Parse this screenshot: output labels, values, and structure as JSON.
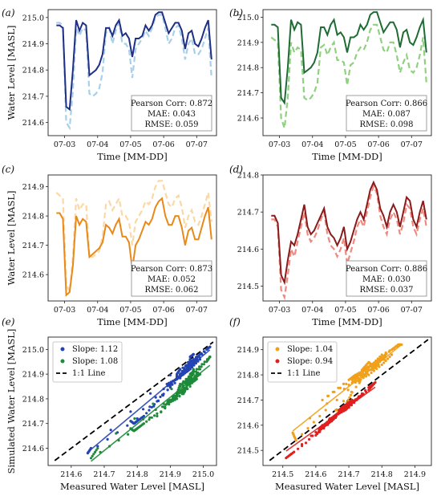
{
  "chart_data": [
    {
      "id": "a",
      "type": "line",
      "panel_label": "(a)",
      "xlabel": "Time [MM-DD]",
      "ylabel": "Water Level [MASL]",
      "x_ticks": [
        "07-03",
        "07-04",
        "07-05",
        "07-06",
        "07-07"
      ],
      "y_ticks": [
        214.6,
        214.7,
        214.8,
        214.9,
        215.0
      ],
      "ylim": [
        214.55,
        215.03
      ],
      "colors": {
        "measured": "#1f2f86",
        "simulated": "#a8d0e8"
      },
      "x_days": [
        2.75,
        2.85,
        2.95,
        3.05,
        3.15,
        3.25,
        3.35,
        3.45,
        3.55,
        3.65,
        3.75,
        3.85,
        3.95,
        4.05,
        4.15,
        4.25,
        4.35,
        4.45,
        4.55,
        4.65,
        4.75,
        4.85,
        4.95,
        5.05,
        5.15,
        5.25,
        5.35,
        5.45,
        5.55,
        5.65,
        5.75,
        5.85,
        5.95,
        6.05,
        6.15,
        6.25,
        6.35,
        6.45,
        6.55,
        6.65,
        6.75,
        6.85,
        6.95,
        7.05,
        7.15,
        7.25,
        7.35,
        7.45
      ],
      "measured": [
        214.97,
        214.97,
        214.96,
        214.66,
        214.65,
        214.8,
        214.99,
        214.95,
        214.98,
        214.97,
        214.78,
        214.79,
        214.8,
        214.82,
        214.86,
        214.96,
        214.96,
        214.93,
        214.97,
        214.99,
        214.93,
        214.94,
        214.92,
        214.85,
        214.92,
        214.92,
        214.93,
        214.97,
        214.95,
        214.97,
        215.01,
        215.02,
        215.02,
        214.98,
        214.94,
        214.96,
        214.98,
        214.98,
        214.95,
        214.88,
        214.94,
        214.95,
        214.9,
        214.89,
        214.92,
        214.96,
        214.99,
        214.84
      ],
      "simulated": [
        214.98,
        214.98,
        214.97,
        214.6,
        214.58,
        214.72,
        214.96,
        214.93,
        214.96,
        214.95,
        214.71,
        214.7,
        214.71,
        214.73,
        214.79,
        214.94,
        214.96,
        214.9,
        214.95,
        214.98,
        214.9,
        214.9,
        214.88,
        214.77,
        214.88,
        214.9,
        214.92,
        214.95,
        214.93,
        214.96,
        215.0,
        215.01,
        215.01,
        214.96,
        214.9,
        214.92,
        214.96,
        214.97,
        214.92,
        214.84,
        214.9,
        214.92,
        214.86,
        214.86,
        214.88,
        214.92,
        214.96,
        214.77
      ],
      "stats": [
        "Pearson Corr: 0.872",
        "MAE: 0.043",
        "RMSE: 0.059"
      ]
    },
    {
      "id": "b",
      "type": "line",
      "panel_label": "(b)",
      "xlabel": "Time [MM-DD]",
      "ylabel": "",
      "x_ticks": [
        "07-03",
        "07-04",
        "07-05",
        "07-06",
        "07-07"
      ],
      "y_ticks": [
        214.6,
        214.7,
        214.8,
        214.9,
        215.0
      ],
      "ylim": [
        214.53,
        215.03
      ],
      "colors": {
        "measured": "#1e6b34",
        "simulated": "#8fd17f"
      },
      "x_days": [
        2.75,
        2.85,
        2.95,
        3.05,
        3.15,
        3.25,
        3.35,
        3.45,
        3.55,
        3.65,
        3.75,
        3.85,
        3.95,
        4.05,
        4.15,
        4.25,
        4.35,
        4.45,
        4.55,
        4.65,
        4.75,
        4.85,
        4.95,
        5.05,
        5.15,
        5.25,
        5.35,
        5.45,
        5.55,
        5.65,
        5.75,
        5.85,
        5.95,
        6.05,
        6.15,
        6.25,
        6.35,
        6.45,
        6.55,
        6.65,
        6.75,
        6.85,
        6.95,
        7.05,
        7.15,
        7.25,
        7.35,
        7.45
      ],
      "measured": [
        214.97,
        214.97,
        214.96,
        214.68,
        214.66,
        214.8,
        214.99,
        214.95,
        214.98,
        214.97,
        214.78,
        214.79,
        214.8,
        214.82,
        214.86,
        214.96,
        214.96,
        214.93,
        214.97,
        214.99,
        214.93,
        214.94,
        214.92,
        214.86,
        214.92,
        214.92,
        214.93,
        214.97,
        214.95,
        214.97,
        215.01,
        215.02,
        215.02,
        214.98,
        214.94,
        214.96,
        214.98,
        214.98,
        214.95,
        214.88,
        214.94,
        214.95,
        214.9,
        214.89,
        214.92,
        214.96,
        214.99,
        214.86
      ],
      "simulated": [
        214.92,
        214.91,
        214.9,
        214.6,
        214.56,
        214.68,
        214.9,
        214.86,
        214.88,
        214.87,
        214.68,
        214.67,
        214.68,
        214.7,
        214.74,
        214.88,
        214.89,
        214.85,
        214.88,
        214.9,
        214.83,
        214.83,
        214.82,
        214.73,
        214.81,
        214.82,
        214.86,
        214.88,
        214.87,
        214.9,
        214.95,
        214.97,
        214.97,
        214.92,
        214.87,
        214.86,
        214.9,
        214.9,
        214.85,
        214.78,
        214.82,
        214.85,
        214.79,
        214.78,
        214.8,
        214.85,
        214.92,
        214.74
      ],
      "stats": [
        "Pearson Corr: 0.866",
        "MAE: 0.087",
        "RMSE: 0.098"
      ]
    },
    {
      "id": "c",
      "type": "line",
      "panel_label": "(c)",
      "xlabel": "Time [MM-DD]",
      "ylabel": "Water Level [MASL]",
      "x_ticks": [
        "07-03",
        "07-04",
        "07-05",
        "07-06",
        "07-07"
      ],
      "y_ticks": [
        214.6,
        214.7,
        214.8,
        214.9
      ],
      "ylim": [
        214.51,
        214.94
      ],
      "colors": {
        "measured": "#e8891a",
        "simulated": "#fbd8a6"
      },
      "x_days": [
        2.75,
        2.85,
        2.95,
        3.05,
        3.15,
        3.25,
        3.35,
        3.45,
        3.55,
        3.65,
        3.75,
        3.85,
        3.95,
        4.05,
        4.15,
        4.25,
        4.35,
        4.45,
        4.55,
        4.65,
        4.75,
        4.85,
        4.95,
        5.05,
        5.15,
        5.25,
        5.35,
        5.45,
        5.55,
        5.65,
        5.75,
        5.85,
        5.95,
        6.05,
        6.15,
        6.25,
        6.35,
        6.45,
        6.55,
        6.65,
        6.75,
        6.85,
        6.95,
        7.05,
        7.15,
        7.25,
        7.35,
        7.45
      ],
      "measured": [
        214.81,
        214.81,
        214.79,
        214.53,
        214.54,
        214.63,
        214.8,
        214.77,
        214.79,
        214.78,
        214.66,
        214.67,
        214.68,
        214.69,
        214.71,
        214.77,
        214.76,
        214.74,
        214.77,
        214.79,
        214.73,
        214.73,
        214.71,
        214.62,
        214.7,
        214.72,
        214.75,
        214.78,
        214.77,
        214.79,
        214.83,
        214.85,
        214.86,
        214.8,
        214.77,
        214.77,
        214.8,
        214.8,
        214.76,
        214.7,
        214.75,
        214.76,
        214.72,
        214.72,
        214.76,
        214.8,
        214.83,
        214.72
      ],
      "simulated": [
        214.88,
        214.87,
        214.86,
        214.57,
        214.54,
        214.66,
        214.86,
        214.82,
        214.84,
        214.84,
        214.66,
        214.66,
        214.67,
        214.68,
        214.73,
        214.84,
        214.85,
        214.82,
        214.84,
        214.86,
        214.8,
        214.8,
        214.78,
        214.7,
        214.78,
        214.8,
        214.82,
        214.85,
        214.84,
        214.86,
        214.9,
        214.92,
        214.92,
        214.88,
        214.84,
        214.83,
        214.86,
        214.87,
        214.83,
        214.76,
        214.8,
        214.82,
        214.78,
        214.77,
        214.8,
        214.84,
        214.88,
        214.78
      ],
      "stats": [
        "Pearson Corr: 0.873",
        "MAE: 0.052",
        "RMSE: 0.062"
      ]
    },
    {
      "id": "d",
      "type": "line",
      "panel_label": "(d)",
      "xlabel": "Time [MM-DD]",
      "ylabel": "",
      "x_ticks": [
        "07-03",
        "07-04",
        "07-05",
        "07-06",
        "07-07"
      ],
      "y_ticks": [
        214.5,
        214.6,
        214.7,
        214.8
      ],
      "ylim": [
        214.46,
        214.8
      ],
      "colors": {
        "measured": "#8b1a1a",
        "simulated": "#f08a80"
      },
      "x_days": [
        2.75,
        2.85,
        2.95,
        3.05,
        3.15,
        3.25,
        3.35,
        3.45,
        3.55,
        3.65,
        3.75,
        3.85,
        3.95,
        4.05,
        4.15,
        4.25,
        4.35,
        4.45,
        4.55,
        4.65,
        4.75,
        4.85,
        4.95,
        5.05,
        5.15,
        5.25,
        5.35,
        5.45,
        5.55,
        5.65,
        5.75,
        5.85,
        5.95,
        6.05,
        6.15,
        6.25,
        6.35,
        6.45,
        6.55,
        6.65,
        6.75,
        6.85,
        6.95,
        7.05,
        7.15,
        7.25,
        7.35,
        7.45
      ],
      "measured": [
        214.69,
        214.69,
        214.67,
        214.53,
        214.51,
        214.57,
        214.62,
        214.61,
        214.64,
        214.68,
        214.72,
        214.66,
        214.64,
        214.65,
        214.67,
        214.69,
        214.71,
        214.66,
        214.64,
        214.63,
        214.61,
        214.63,
        214.66,
        214.6,
        214.62,
        214.65,
        214.68,
        214.7,
        214.68,
        214.72,
        214.76,
        214.78,
        214.76,
        214.71,
        214.69,
        214.66,
        214.7,
        214.72,
        214.7,
        214.66,
        214.7,
        214.74,
        214.73,
        214.68,
        214.66,
        214.7,
        214.73,
        214.68
      ],
      "simulated": [
        214.68,
        214.68,
        214.66,
        214.49,
        214.47,
        214.53,
        214.6,
        214.58,
        214.62,
        214.66,
        214.7,
        214.64,
        214.62,
        214.63,
        214.65,
        214.68,
        214.7,
        214.64,
        214.61,
        214.6,
        214.58,
        214.6,
        214.63,
        214.56,
        214.59,
        214.62,
        214.66,
        214.68,
        214.66,
        214.7,
        214.74,
        214.77,
        214.75,
        214.69,
        214.66,
        214.64,
        214.68,
        214.7,
        214.68,
        214.64,
        214.67,
        214.72,
        214.71,
        214.66,
        214.64,
        214.68,
        214.71,
        214.66
      ],
      "stats": [
        "Pearson Corr: 0.886",
        "MAE: 0.030",
        "RMSE: 0.037"
      ]
    },
    {
      "id": "e",
      "type": "scatter",
      "panel_label": "(e)",
      "xlabel": "Measured Water Level [MASL]",
      "ylabel": "Simulated Water Level [MASL]",
      "x_ticks": [
        214.6,
        214.7,
        214.8,
        214.9,
        215.0
      ],
      "y_ticks": [
        214.6,
        214.7,
        214.8,
        214.9,
        215.0
      ],
      "xlim": [
        214.53,
        215.04
      ],
      "ylim": [
        214.53,
        215.05
      ],
      "series": [
        {
          "label": "Slope: 1.12",
          "color": "#2444b3",
          "source": 0,
          "slope": 1.12
        },
        {
          "label": "Slope: 1.08",
          "color": "#1e8a3a",
          "source": 1,
          "slope": 1.08
        }
      ],
      "reference": {
        "label": "1:1 Line",
        "color": "#000000"
      }
    },
    {
      "id": "f",
      "type": "scatter",
      "panel_label": "(f)",
      "xlabel": "Measured Water Level [MASL]",
      "ylabel": "",
      "x_ticks": [
        214.5,
        214.6,
        214.7,
        214.8,
        214.9
      ],
      "y_ticks": [
        214.5,
        214.6,
        214.7,
        214.8,
        214.9
      ],
      "xlim": [
        214.44,
        214.95
      ],
      "ylim": [
        214.44,
        214.95
      ],
      "series": [
        {
          "label": "Slope: 1.04",
          "color": "#f0a01a",
          "source": 2,
          "slope": 1.04
        },
        {
          "label": "Slope: 0.94",
          "color": "#e01f1f",
          "source": 3,
          "slope": 0.94
        }
      ],
      "reference": {
        "label": "1:1 Line",
        "color": "#000000"
      }
    }
  ]
}
